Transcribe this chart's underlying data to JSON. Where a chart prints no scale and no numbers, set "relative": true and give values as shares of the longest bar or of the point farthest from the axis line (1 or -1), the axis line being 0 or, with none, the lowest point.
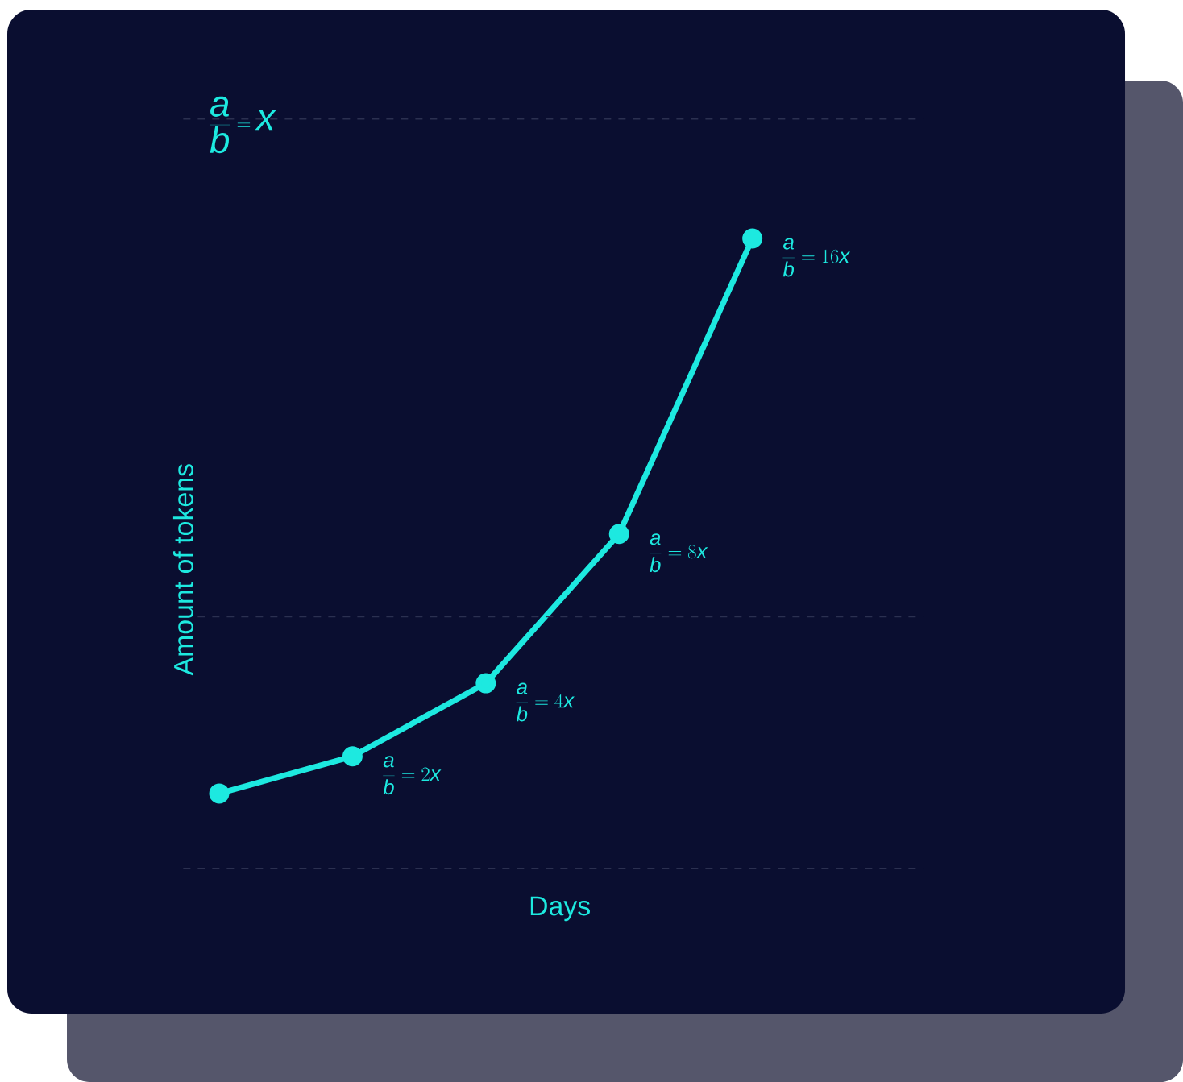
{
  "chart_data": {
    "type": "line",
    "title": "\\frac{a}{b}=x",
    "xlabel": "Days",
    "ylabel": "Amount of tokens",
    "categories": [
      null,
      null,
      null,
      null,
      null
    ],
    "series": [
      {
        "color": "#1de9e0",
        "values": [
          0.119,
          0.178,
          0.294,
          0.531,
          1.0
        ]
      }
    ],
    "relative": true,
    "marker": "circle",
    "annotations": [
      "\\frac{a}{b}=2x",
      "\\frac{a}{b}=4x",
      "\\frac{a}{b}=8x",
      "\\frac{a}{b}=16x"
    ],
    "ref_lines": [
      {
        "axis": "y",
        "value": 0,
        "color": "#2b3050",
        "line_style": "dashed"
      },
      {
        "axis": "y",
        "value": 0.4,
        "color": "#2b3050",
        "line_style": "dashed"
      },
      {
        "axis": "y",
        "value": 1.19,
        "color": "#2b3050",
        "line_style": "dashed"
      }
    ]
  }
}
